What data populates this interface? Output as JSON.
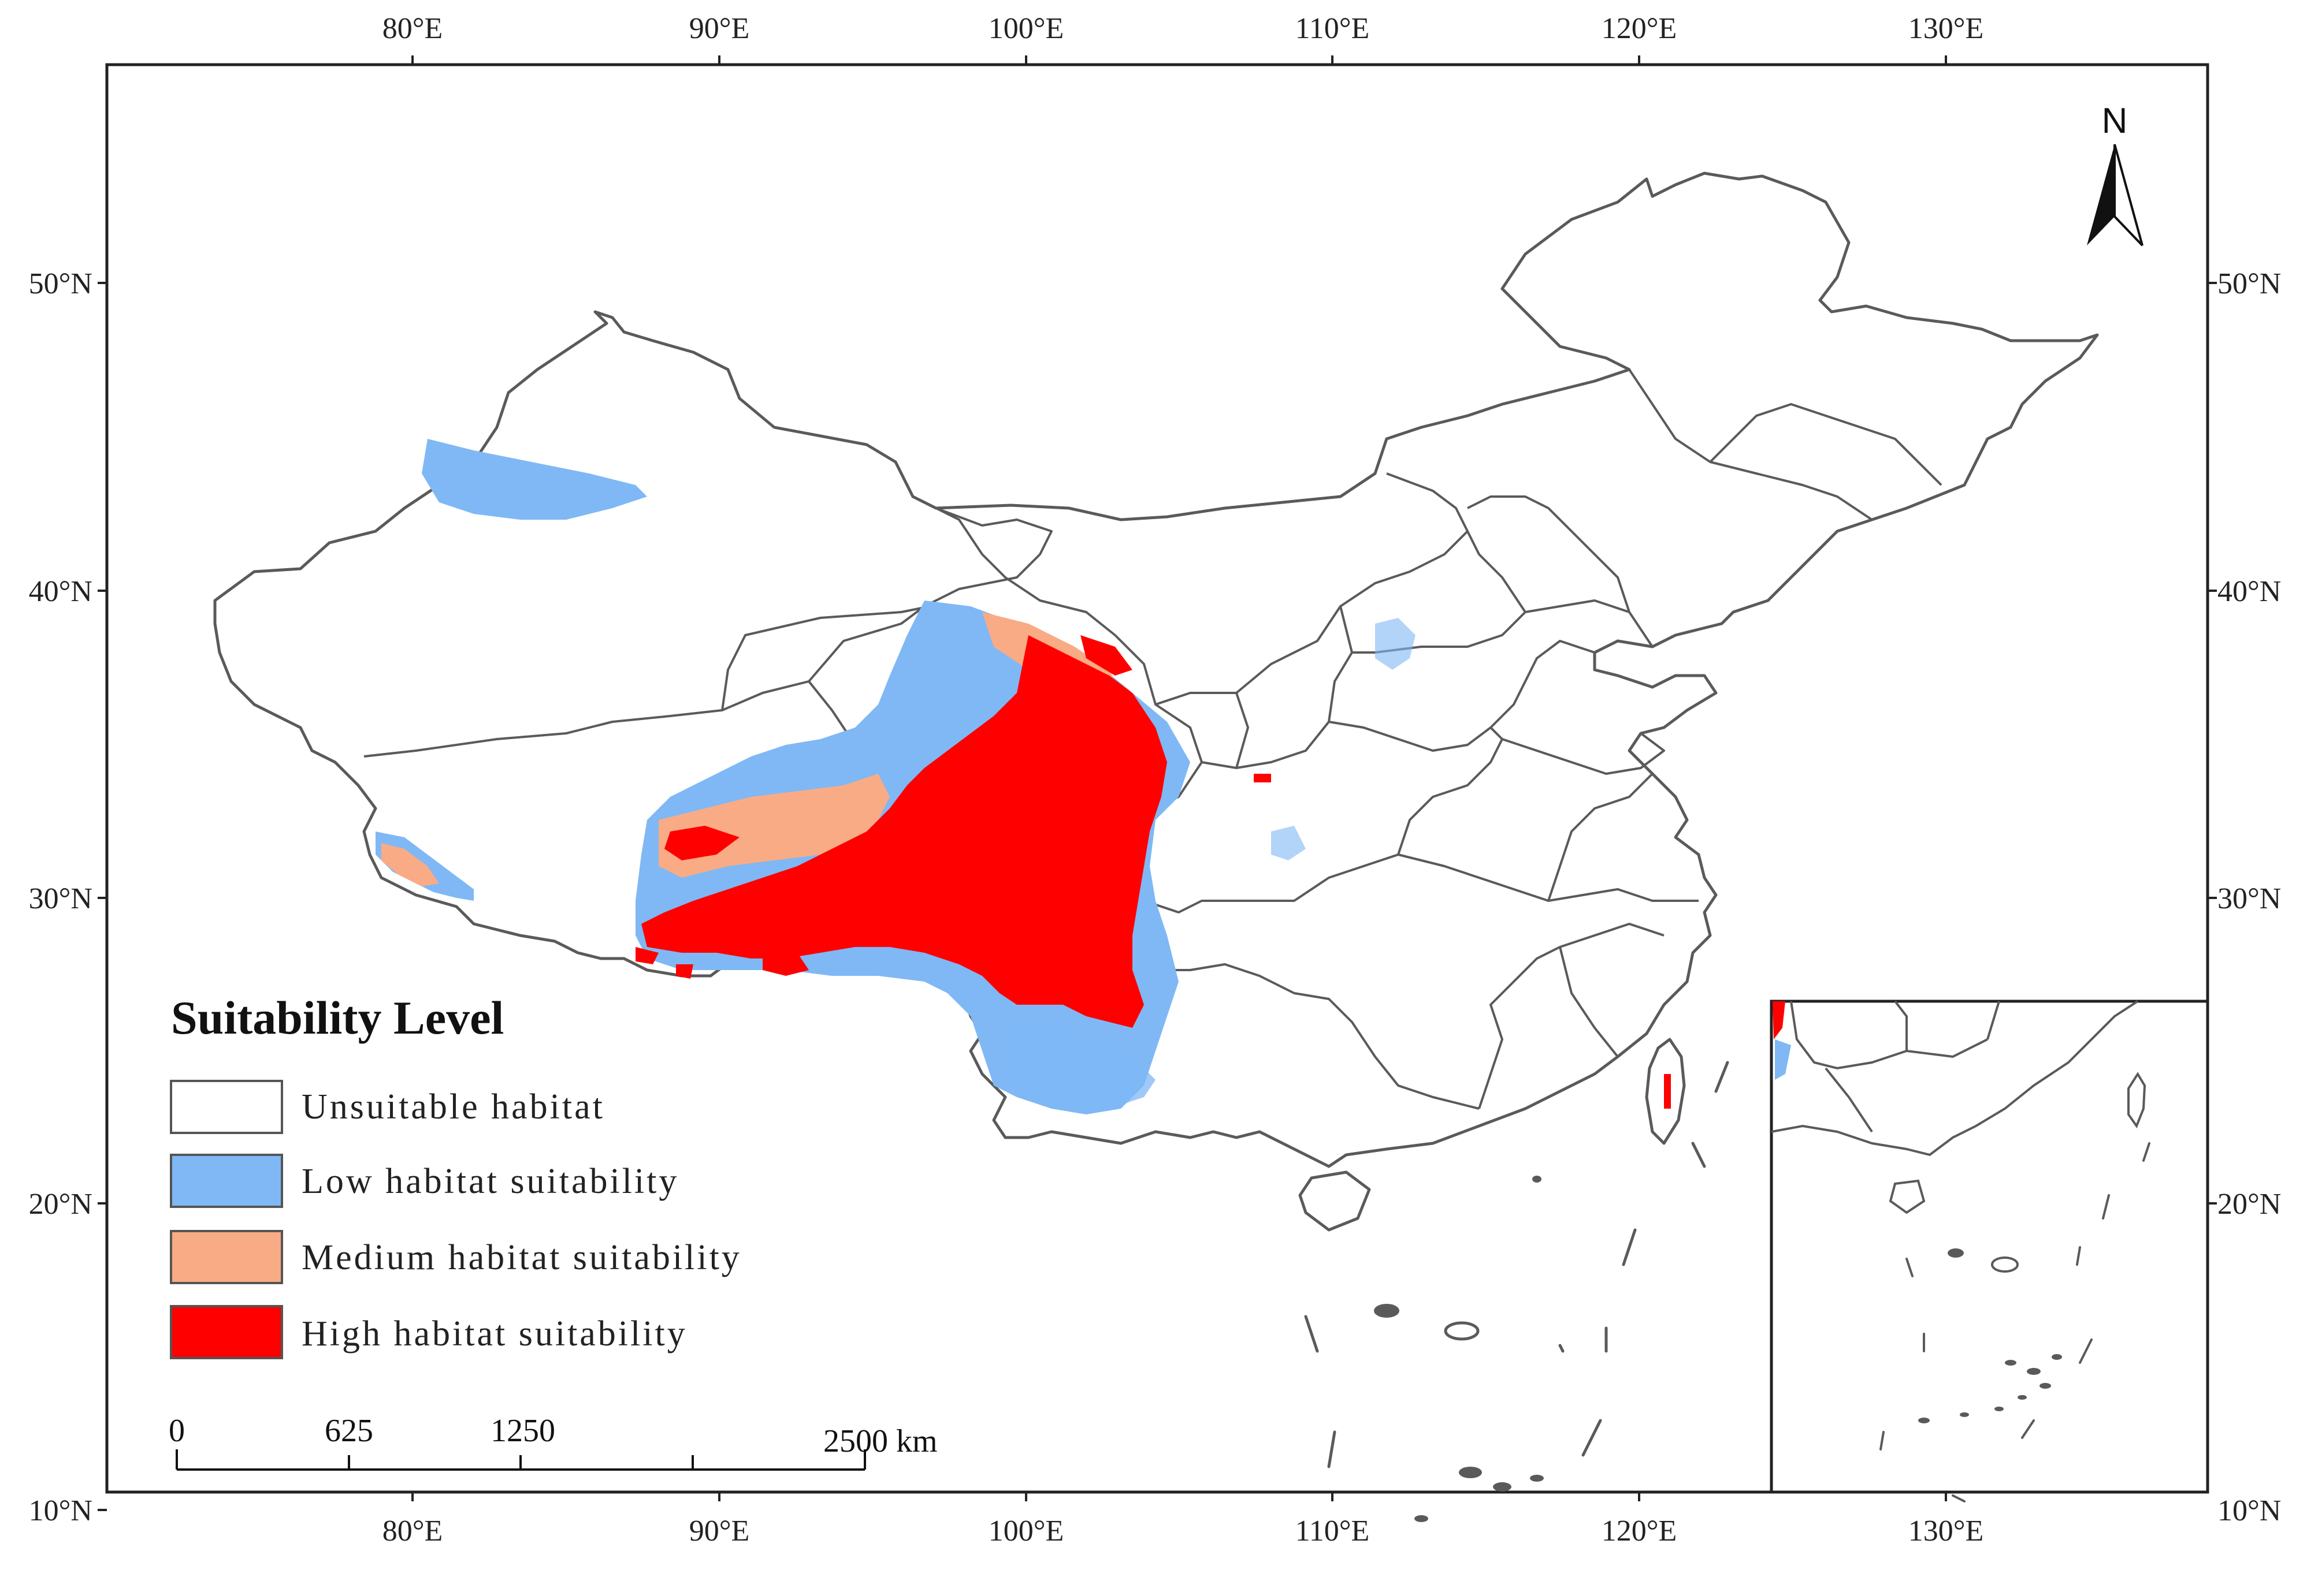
{
  "map": {
    "lon_ticks_top": [
      "80°E",
      "90°E",
      "100°E",
      "110°E",
      "120°E",
      "130°E"
    ],
    "lon_ticks_bottom": [
      "80°E",
      "90°E",
      "100°E",
      "110°E",
      "120°E",
      "130°E"
    ],
    "lat_ticks_left": [
      "50°N",
      "40°N",
      "30°N",
      "20°N",
      "10°N"
    ],
    "lat_ticks_right": [
      "50°N",
      "40°N",
      "30°N",
      "20°N",
      "10°N"
    ],
    "extent": {
      "lon": [
        70,
        138.5
      ],
      "lat": [
        9.3,
        57.3
      ]
    }
  },
  "legend": {
    "title": "Suitability Level",
    "items": [
      {
        "label": "Unsuitable habitat",
        "color": "#ffffff"
      },
      {
        "label": "Low habitat suitability",
        "color": "#7fb8f5"
      },
      {
        "label": "Medium habitat suitability",
        "color": "#f9ab85"
      },
      {
        "label": "High habitat suitability",
        "color": "#ff0000"
      }
    ]
  },
  "scale_bar": {
    "labels": [
      "0",
      "625",
      "1250",
      "2500 km"
    ]
  },
  "north_arrow": {
    "label": "N",
    "icon": "north-arrow-icon"
  },
  "colors": {
    "border": "#5a5a5a",
    "frame": "#222222",
    "low": "#7fb8f5",
    "medium": "#f9ab85",
    "high": "#ff0000"
  }
}
